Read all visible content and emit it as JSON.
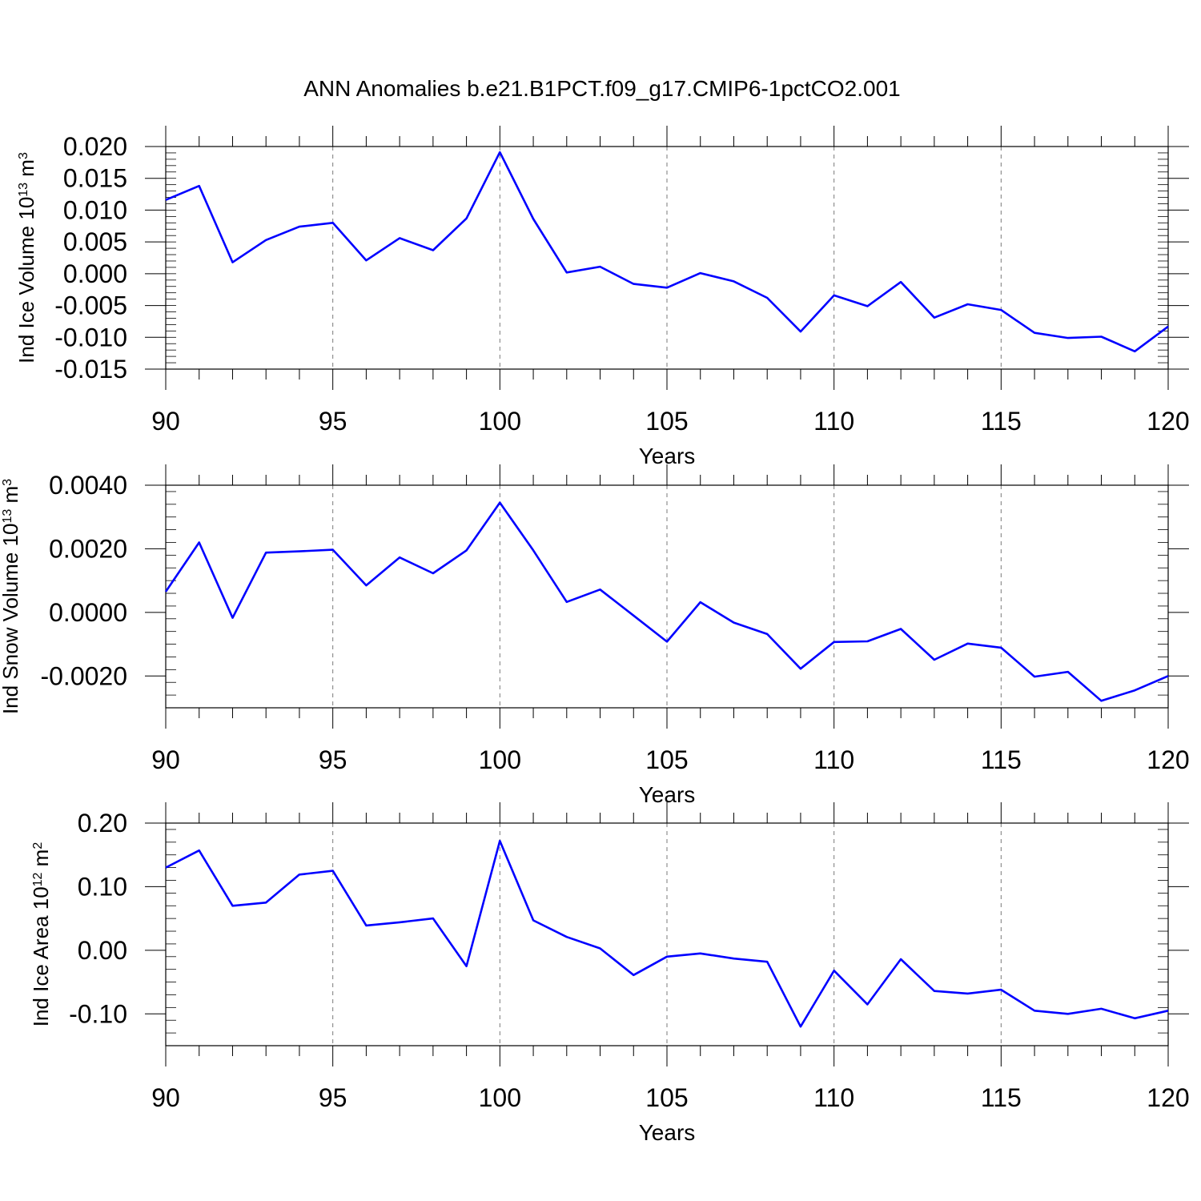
{
  "chart_data": {
    "title": "ANN Anomalies b.e21.B1PCT.f09_g17.CMIP6-1pctCO2.001",
    "panels": [
      {
        "type": "line",
        "ylabel_parts": [
          "Ind Ice Volume 10",
          "13",
          " m",
          "3"
        ],
        "xlabel": "Years",
        "xlim": [
          90,
          120
        ],
        "ylim": [
          -0.015,
          0.02
        ],
        "x_ticks": [
          "90",
          "95",
          "100",
          "105",
          "110",
          "115",
          "120"
        ],
        "y_ticks": [
          "0.020",
          "0.015",
          "0.010",
          "0.005",
          "0.000",
          "-0.005",
          "-0.010",
          "-0.015"
        ],
        "y_tick_values": [
          0.02,
          0.015,
          0.01,
          0.005,
          0.0,
          -0.005,
          -0.01,
          -0.015
        ],
        "line_color": "#0000ff",
        "x": [
          90,
          91,
          92,
          93,
          94,
          95,
          96,
          97,
          98,
          99,
          100,
          101,
          102,
          103,
          104,
          105,
          106,
          107,
          108,
          109,
          110,
          111,
          112,
          113,
          114,
          115,
          116,
          117,
          118,
          119,
          120
        ],
        "values": [
          0.0116,
          0.0138,
          0.0018,
          0.0053,
          0.0074,
          0.008,
          0.0021,
          0.0056,
          0.0037,
          0.0087,
          0.0191,
          0.0086,
          0.0002,
          0.0011,
          -0.0016,
          -0.0022,
          0.0001,
          -0.0012,
          -0.0038,
          -0.0091,
          -0.0034,
          -0.0051,
          -0.0013,
          -0.0069,
          -0.0048,
          -0.0057,
          -0.0093,
          -0.0101,
          -0.0099,
          -0.0122,
          -0.0083
        ]
      },
      {
        "type": "line",
        "ylabel_parts": [
          "Ind Snow Volume 10",
          "13",
          " m",
          "3"
        ],
        "xlabel": "Years",
        "xlim": [
          90,
          120
        ],
        "ylim": [
          -0.003,
          0.004
        ],
        "x_ticks": [
          "90",
          "95",
          "100",
          "105",
          "110",
          "115",
          "120"
        ],
        "y_ticks": [
          "0.0040",
          "0.0020",
          "0.0000",
          "-0.0020"
        ],
        "y_tick_values": [
          0.004,
          0.002,
          0.0,
          -0.002
        ],
        "line_color": "#0000ff",
        "x": [
          90,
          91,
          92,
          93,
          94,
          95,
          96,
          97,
          98,
          99,
          100,
          101,
          102,
          103,
          104,
          105,
          106,
          107,
          108,
          109,
          110,
          111,
          112,
          113,
          114,
          115,
          116,
          117,
          118,
          119,
          120
        ],
        "values": [
          0.00065,
          0.0022,
          -0.00017,
          0.00188,
          0.00192,
          0.00197,
          0.00085,
          0.00173,
          0.00123,
          0.00195,
          0.00345,
          0.00195,
          0.00033,
          0.00072,
          -0.0001,
          -0.00092,
          0.00032,
          -0.00032,
          -0.00068,
          -0.00177,
          -0.00093,
          -0.00091,
          -0.00052,
          -0.00149,
          -0.00098,
          -0.00111,
          -0.00202,
          -0.00187,
          -0.00278,
          -0.00245,
          -0.002
        ]
      },
      {
        "type": "line",
        "ylabel_parts": [
          "Ind Ice Area 10",
          "12",
          " m",
          "2"
        ],
        "xlabel": "Years",
        "xlim": [
          90,
          120
        ],
        "ylim": [
          -0.15,
          0.2
        ],
        "x_ticks": [
          "90",
          "95",
          "100",
          "105",
          "110",
          "115",
          "120"
        ],
        "y_ticks": [
          "0.20",
          "0.10",
          "0.00",
          "-0.10"
        ],
        "y_tick_values": [
          0.2,
          0.1,
          0.0,
          -0.1
        ],
        "line_color": "#0000ff",
        "x": [
          90,
          91,
          92,
          93,
          94,
          95,
          96,
          97,
          98,
          99,
          100,
          101,
          102,
          103,
          104,
          105,
          106,
          107,
          108,
          109,
          110,
          111,
          112,
          113,
          114,
          115,
          116,
          117,
          118,
          119,
          120
        ],
        "values": [
          0.13,
          0.157,
          0.07,
          0.075,
          0.119,
          0.125,
          0.039,
          0.044,
          0.05,
          -0.025,
          0.172,
          0.047,
          0.021,
          0.003,
          -0.039,
          -0.01,
          -0.005,
          -0.013,
          -0.018,
          -0.12,
          -0.032,
          -0.085,
          -0.014,
          -0.064,
          -0.068,
          -0.062,
          -0.095,
          -0.1,
          -0.092,
          -0.107,
          -0.095
        ]
      }
    ]
  }
}
